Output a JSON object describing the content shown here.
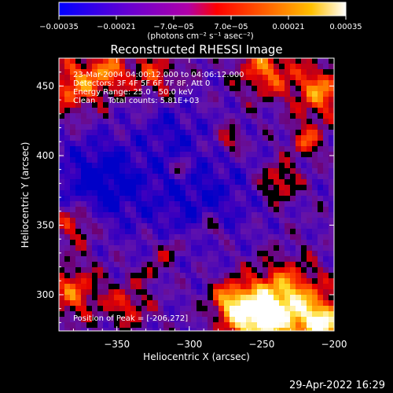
{
  "chart_data": {
    "type": "heatmap",
    "title": "Reconstructed RHESSI Image",
    "xlabel": "Heliocentric X (arcsec)",
    "ylabel": "Heliocentric Y (arcsec)",
    "xlim": [
      -390,
      -200
    ],
    "ylim": [
      274,
      470
    ],
    "x_ticks": [
      -350,
      -300,
      -250,
      -200
    ],
    "x_tick_labels": [
      "−350",
      "−300",
      "−250",
      "−200"
    ],
    "y_ticks": [
      300,
      350,
      400,
      450
    ],
    "y_tick_labels": [
      "300",
      "350",
      "400",
      "450"
    ],
    "colorbar": {
      "range": [
        -0.00035,
        0.00035
      ],
      "ticks": [
        -0.00035,
        -0.00021,
        -7e-05,
        7e-05,
        0.00021,
        0.00035
      ],
      "tick_labels": [
        "−0.00035",
        "−0.00021",
        "−7.0e−05",
        "7.0e−05",
        "0.00021",
        "0.00035"
      ],
      "units": "(photons cm⁻² s⁻¹ asec⁻²)",
      "colormap": [
        "#0000ff",
        "#7000d0",
        "#c000a0",
        "#ff0000",
        "#ff6000",
        "#ffb000",
        "#ffff00",
        "#ffffff"
      ]
    },
    "annotations": [
      "23-Mar-2004 04:00:12.000 to 04:06:12.000",
      "Detectors: 3F 4F 5F 6F 7F 8F, Att 0",
      "Energy Range: 25.0 - 50.0 keV",
      "Clean     Total counts: 5.81E+03",
      "Position of Peak = [-206,272]"
    ],
    "peak_position": [
      -206,
      272
    ],
    "grid": false
  },
  "footer": {
    "date_stamp": "29-Apr-2022 16:29"
  }
}
